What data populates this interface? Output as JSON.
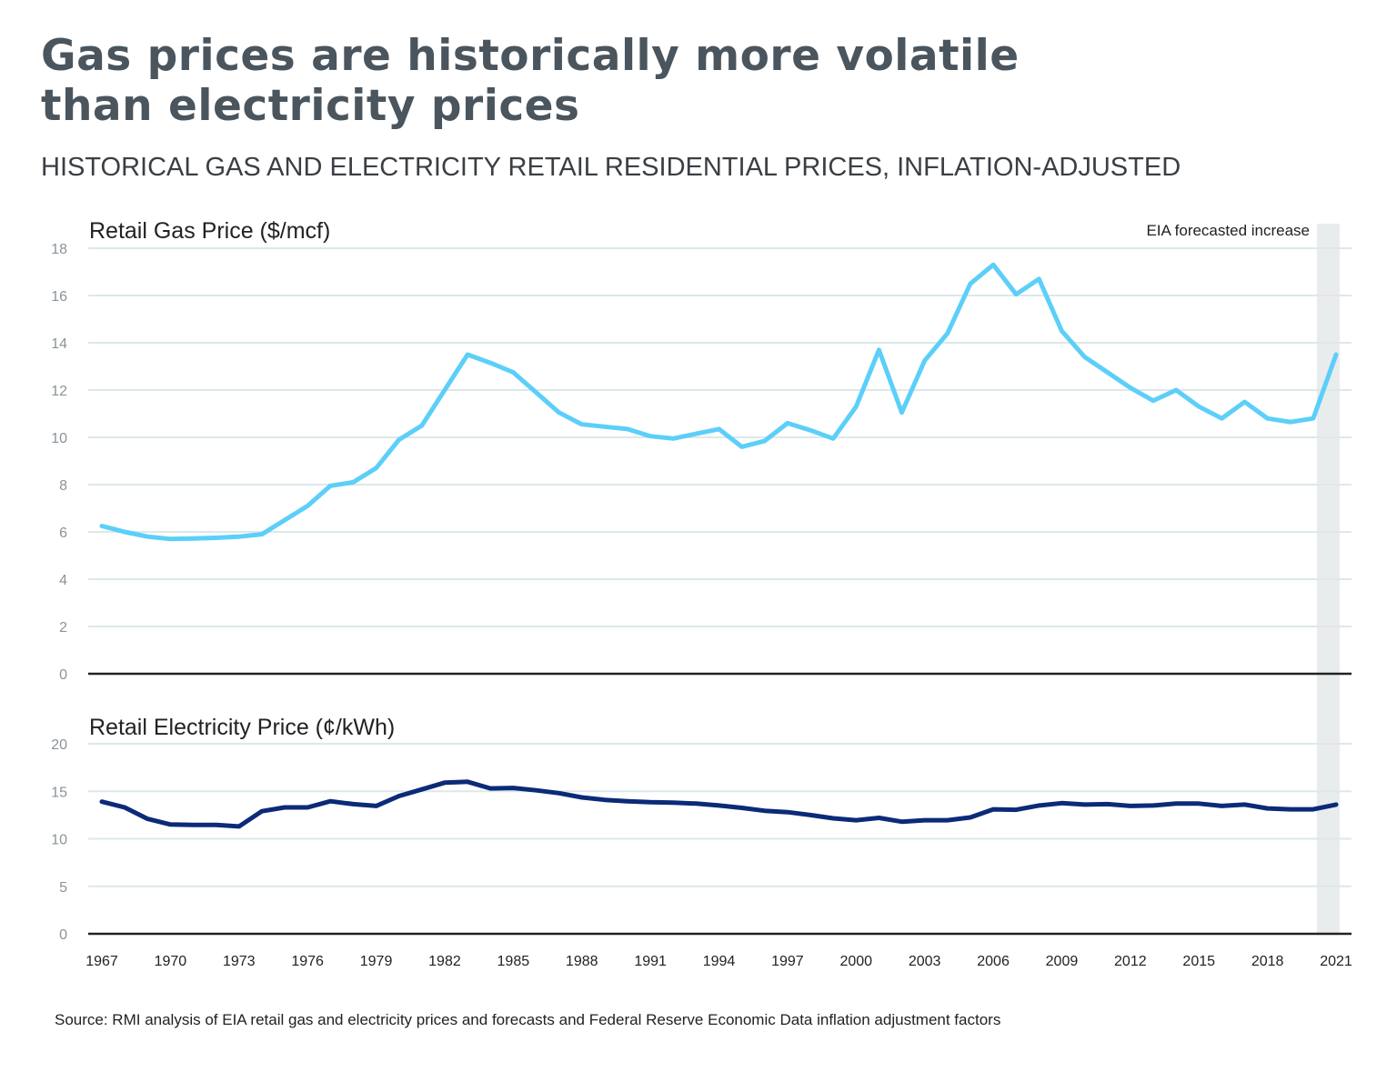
{
  "title": "Gas prices are historically more volatile than electricity prices",
  "subtitle": "HISTORICAL GAS AND ELECTRICITY RETAIL RESIDENTIAL PRICES, INFLATION-ADJUSTED",
  "source": "Source: RMI analysis of EIA retail gas and electricity prices and forecasts and Federal Reserve Economic Data inflation adjustment factors",
  "colors": {
    "gas": "#5ccff9",
    "electricity": "#0b2a78",
    "shade": "#e9eced",
    "grid": "#dde8ea"
  },
  "chart_data": [
    {
      "type": "line",
      "title": "Retail Gas Price ($/mcf)",
      "annotation": "EIA forecasted increase",
      "shaded_range": [
        2020,
        2021
      ],
      "ylim": [
        0,
        18
      ],
      "yticks": [
        0,
        2,
        4,
        6,
        8,
        10,
        12,
        14,
        16,
        18
      ],
      "grid": true,
      "x": [
        1967,
        1968,
        1969,
        1970,
        1971,
        1972,
        1973,
        1974,
        1975,
        1976,
        1977,
        1978,
        1979,
        1980,
        1981,
        1982,
        1983,
        1984,
        1985,
        1986,
        1987,
        1988,
        1989,
        1990,
        1991,
        1992,
        1993,
        1994,
        1995,
        1996,
        1997,
        1998,
        1999,
        2000,
        2001,
        2002,
        2003,
        2004,
        2005,
        2006,
        2007,
        2008,
        2009,
        2010,
        2011,
        2012,
        2013,
        2014,
        2015,
        2016,
        2017,
        2018,
        2019,
        2020,
        2021
      ],
      "values": [
        6.25,
        6.0,
        5.8,
        5.7,
        5.72,
        5.75,
        5.8,
        5.9,
        6.5,
        7.1,
        7.95,
        8.1,
        8.7,
        9.9,
        10.5,
        12.0,
        13.5,
        13.15,
        12.75,
        11.9,
        11.05,
        10.55,
        10.45,
        10.35,
        10.05,
        9.95,
        10.15,
        10.35,
        9.6,
        9.85,
        10.6,
        10.3,
        9.95,
        11.3,
        13.7,
        11.05,
        13.25,
        14.4,
        16.5,
        17.3,
        16.05,
        16.7,
        14.5,
        13.4,
        12.75,
        12.1,
        11.55,
        12.0,
        11.3,
        10.8,
        11.5,
        10.8,
        10.65,
        10.8,
        13.5
      ]
    },
    {
      "type": "line",
      "title": "Retail Electricity Price (¢/kWh)",
      "ylim": [
        0,
        20
      ],
      "yticks": [
        0,
        5,
        10,
        15,
        20
      ],
      "grid": true,
      "xticks": [
        1967,
        1970,
        1973,
        1976,
        1979,
        1982,
        1985,
        1988,
        1991,
        1994,
        1997,
        2000,
        2003,
        2006,
        2009,
        2012,
        2015,
        2018,
        2021
      ],
      "x": [
        1967,
        1968,
        1969,
        1970,
        1971,
        1972,
        1973,
        1974,
        1975,
        1976,
        1977,
        1978,
        1979,
        1980,
        1981,
        1982,
        1983,
        1984,
        1985,
        1986,
        1987,
        1988,
        1989,
        1990,
        1991,
        1992,
        1993,
        1994,
        1995,
        1996,
        1997,
        1998,
        1999,
        2000,
        2001,
        2002,
        2003,
        2004,
        2005,
        2006,
        2007,
        2008,
        2009,
        2010,
        2011,
        2012,
        2013,
        2014,
        2015,
        2016,
        2017,
        2018,
        2019,
        2020,
        2021
      ],
      "values": [
        13.9,
        13.3,
        12.1,
        11.5,
        11.45,
        11.45,
        11.3,
        12.9,
        13.3,
        13.3,
        13.95,
        13.65,
        13.45,
        14.5,
        15.2,
        15.9,
        16.0,
        15.3,
        15.35,
        15.1,
        14.8,
        14.35,
        14.1,
        13.95,
        13.85,
        13.8,
        13.7,
        13.5,
        13.25,
        12.95,
        12.8,
        12.5,
        12.15,
        11.95,
        12.2,
        11.8,
        11.95,
        11.95,
        12.25,
        13.1,
        13.05,
        13.5,
        13.75,
        13.6,
        13.65,
        13.45,
        13.5,
        13.7,
        13.7,
        13.45,
        13.6,
        13.2,
        13.1,
        13.1,
        13.6
      ]
    }
  ]
}
